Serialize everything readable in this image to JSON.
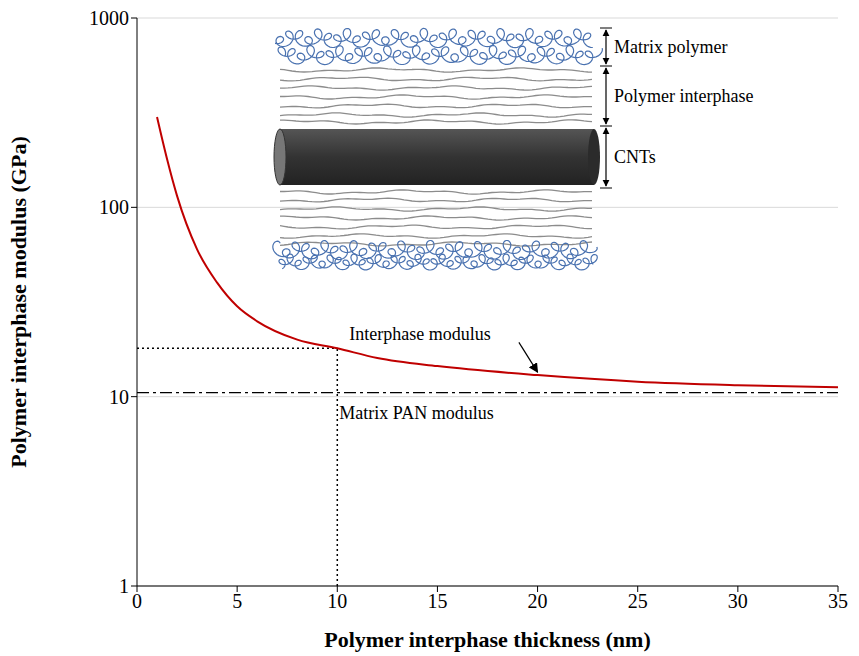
{
  "chart_data": {
    "type": "line",
    "x_label": "Polymer interphase thickness (nm)",
    "y_label": "Polymer interphase modulus (GPa)",
    "x": [
      1,
      1.5,
      2,
      3,
      4,
      5,
      6,
      8,
      10,
      12,
      15,
      20,
      25,
      30,
      35
    ],
    "series": [
      {
        "name": "Interphase modulus",
        "color": "#c00000",
        "values": [
          300,
          180,
          115,
          60,
          40,
          30,
          25,
          20,
          18,
          16,
          14.5,
          13,
          12,
          11.5,
          11.2
        ]
      }
    ],
    "xlim": [
      0,
      35
    ],
    "xticks": [
      0,
      5,
      10,
      15,
      20,
      25,
      30,
      35
    ],
    "ylim": [
      1,
      1000
    ],
    "yticks": [
      1,
      10,
      100,
      1000
    ],
    "log": "y",
    "grid": true,
    "reference_line": {
      "label": "Matrix PAN modulus",
      "value": 10.5
    },
    "marked_point": {
      "x": 10,
      "y": 18
    },
    "inset_labels": [
      "Matrix polymer",
      "Polymer interphase",
      "CNTs"
    ]
  }
}
